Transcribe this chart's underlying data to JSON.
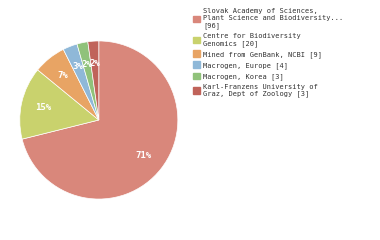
{
  "labels": [
    "Slovak Academy of Sciences,\nPlant Science and Biodiversity...\n[96]",
    "Centre for Biodiversity\nGenomics [20]",
    "Mined from GenBank, NCBI [9]",
    "Macrogen, Europe [4]",
    "Macrogen, Korea [3]",
    "Karl-Franzens University of\nGraz, Dept of Zoology [3]"
  ],
  "values": [
    96,
    20,
    9,
    4,
    3,
    3
  ],
  "colors": [
    "#d9877b",
    "#c9d26d",
    "#e8a464",
    "#8fb8d8",
    "#90c27a",
    "#c0635a"
  ],
  "startangle": 90,
  "background_color": "#ffffff",
  "text_color": "#333333",
  "font_family": "monospace"
}
